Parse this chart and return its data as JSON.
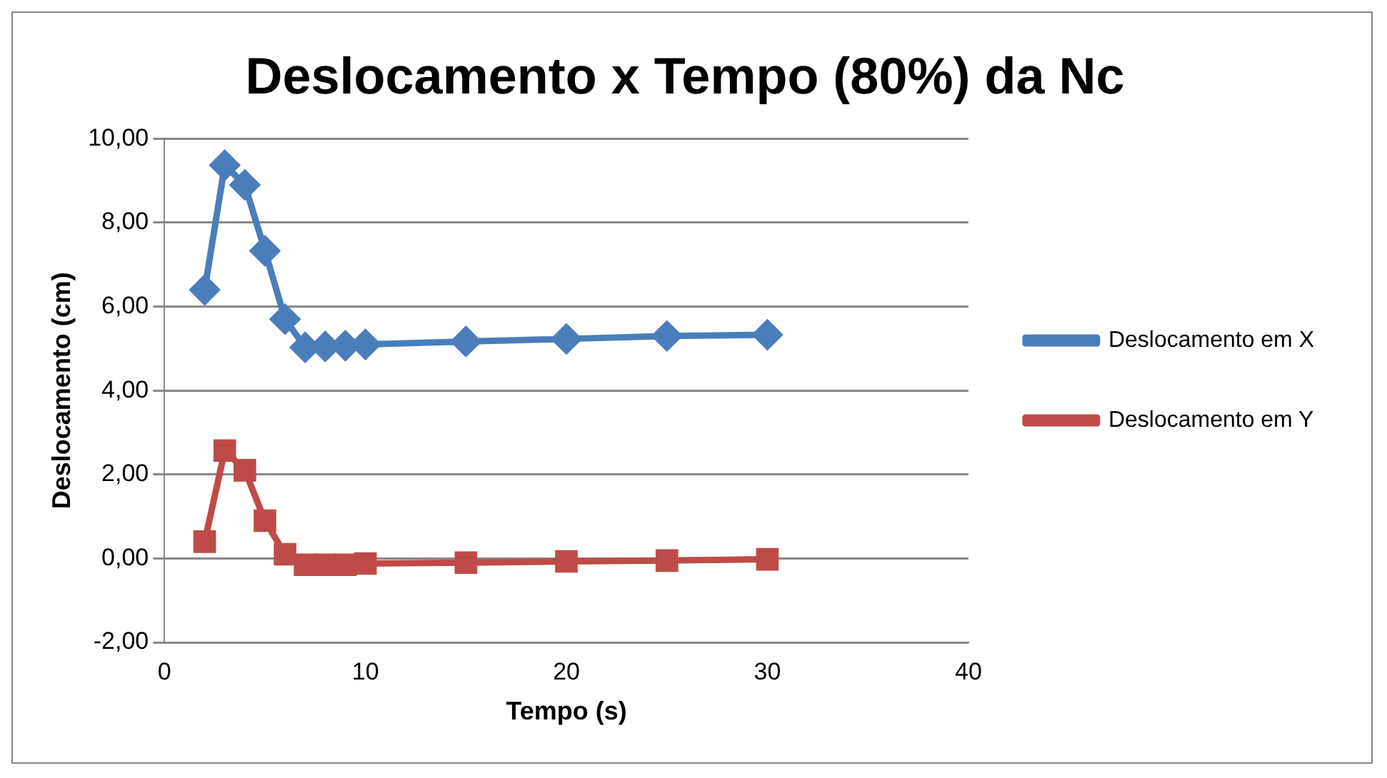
{
  "chart_data": {
    "type": "line",
    "title": "Deslocamento x Tempo (80%) da Nc",
    "xlabel": "Tempo (s)",
    "ylabel": "Deslocamento (cm)",
    "x": [
      2,
      3,
      4,
      5,
      6,
      7,
      8,
      9,
      10,
      15,
      20,
      25,
      30
    ],
    "series": [
      {
        "name": "Deslocamento em X",
        "color": "#4a7ebb",
        "marker": "diamond",
        "values": [
          6.4,
          9.37,
          8.9,
          7.33,
          5.7,
          5.03,
          5.05,
          5.07,
          5.1,
          5.17,
          5.23,
          5.3,
          5.33
        ]
      },
      {
        "name": "Deslocamento em Y",
        "color": "#be4b48",
        "marker": "square",
        "values": [
          0.4,
          2.57,
          2.1,
          0.9,
          0.1,
          -0.15,
          -0.15,
          -0.15,
          -0.12,
          -0.1,
          -0.07,
          -0.05,
          -0.02
        ]
      }
    ],
    "xlim": [
      0,
      40
    ],
    "xticks": [
      {
        "value": 0,
        "label": "0"
      },
      10,
      20,
      30,
      40
    ],
    "ylim": [
      -2,
      10
    ],
    "yticks": [
      {
        "value": -2,
        "label": "-2,00"
      },
      {
        "value": 0,
        "label": "0,00"
      },
      {
        "value": 2,
        "label": "2,00"
      },
      {
        "value": 4,
        "label": "4,00"
      },
      {
        "value": 6,
        "label": "6,00"
      },
      {
        "value": 8,
        "label": "8,00"
      },
      {
        "value": 10,
        "label": "10,00"
      }
    ],
    "grid": "y",
    "legend": "right",
    "line_style": "solid"
  }
}
